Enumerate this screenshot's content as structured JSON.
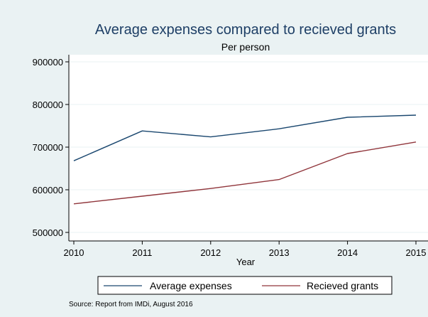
{
  "chart_data": {
    "type": "line",
    "title": "Average expenses compared to recieved grants",
    "subtitle": "Per person",
    "xlabel": "Year",
    "ylabel": "",
    "x": [
      2010,
      2011,
      2012,
      2013,
      2014,
      2015
    ],
    "x_ticks": [
      "2010",
      "2011",
      "2012",
      "2013",
      "2014",
      "2015"
    ],
    "y_ticks": [
      "500000",
      "600000",
      "700000",
      "800000",
      "900000"
    ],
    "xlim": [
      2010,
      2015
    ],
    "ylim": [
      500000,
      900000
    ],
    "grid": true,
    "legend_position": "bottom",
    "series": [
      {
        "name": "Average expenses",
        "color": "#1a476f",
        "values": [
          668000,
          738000,
          724000,
          743000,
          770000,
          775000
        ]
      },
      {
        "name": "Recieved grants",
        "color": "#90353b",
        "values": [
          567000,
          585000,
          603000,
          624000,
          685000,
          712000
        ]
      }
    ],
    "note": "Source: Report from IMDi, August 2016"
  },
  "colors": {
    "background": "#eaf2f3",
    "plot_area": "#ffffff",
    "gridline": "#eaf2f3",
    "title": "#1e3f66"
  }
}
